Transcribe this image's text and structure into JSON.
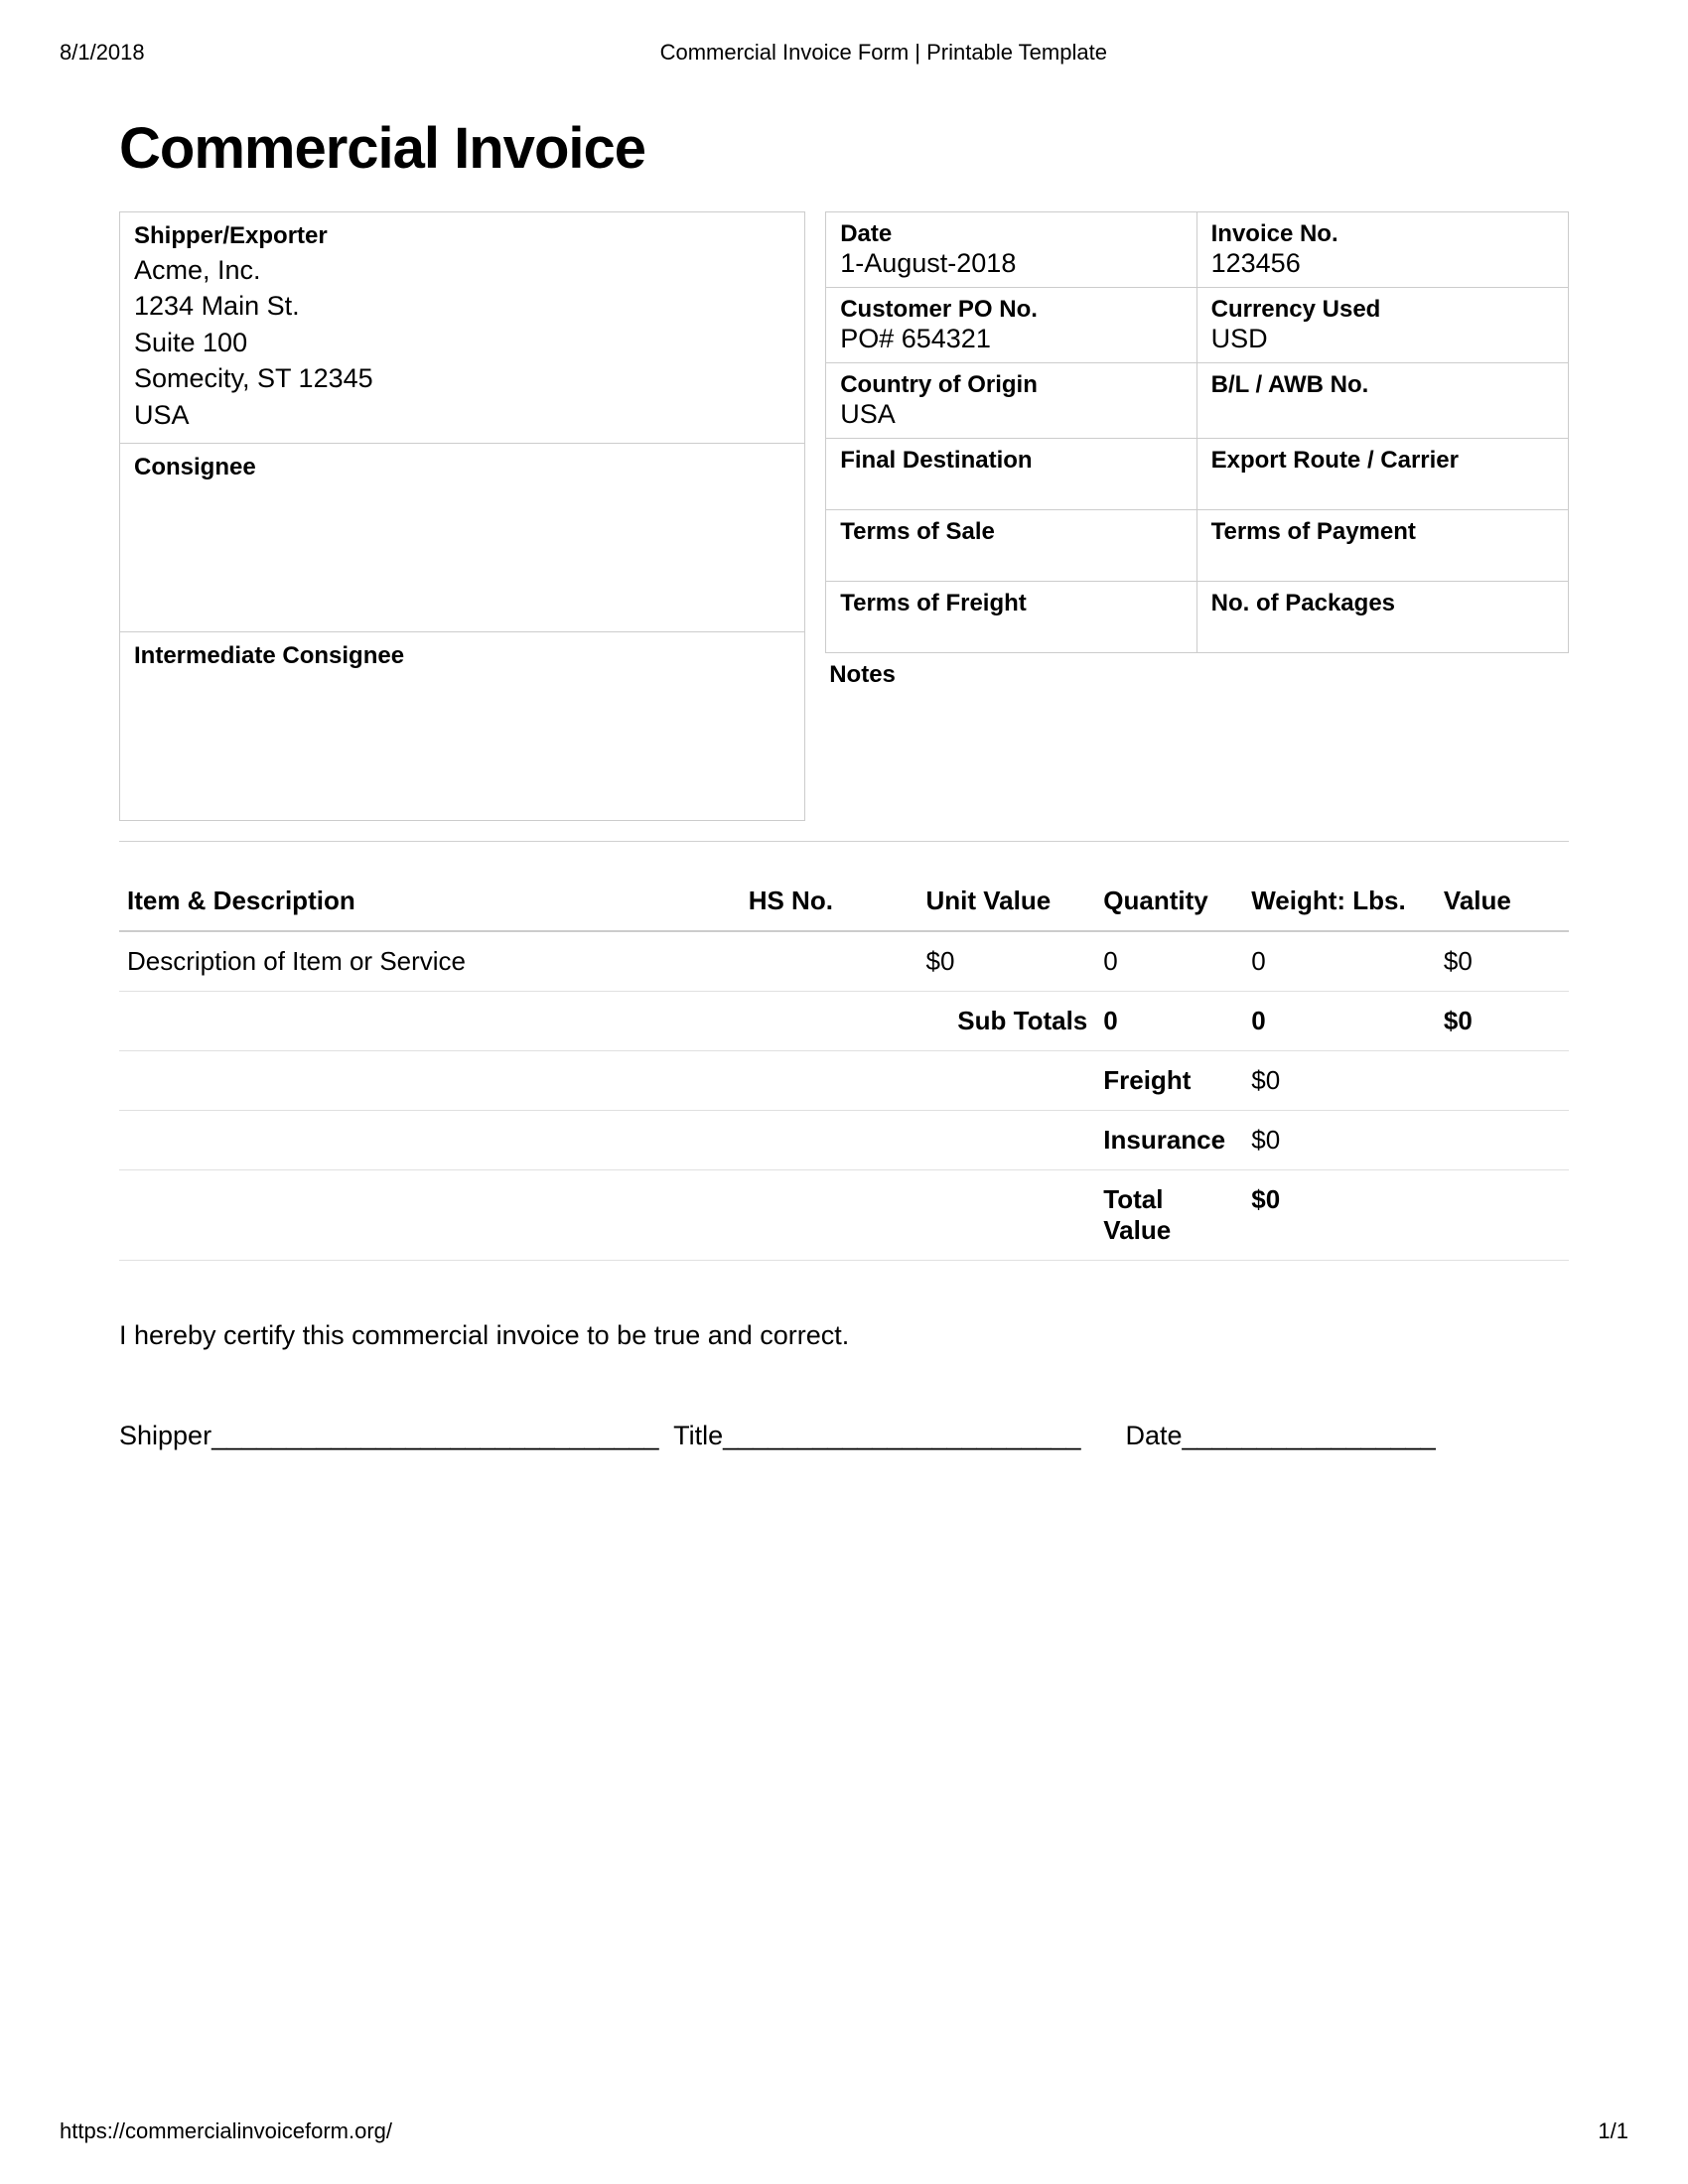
{
  "print": {
    "date": "8/1/2018",
    "title": "Commercial Invoice Form | Printable Template",
    "url": "https://commercialinvoiceform.org/",
    "page": "1/1"
  },
  "heading": "Commercial Invoice",
  "shipper": {
    "label": "Shipper/Exporter",
    "name": "Acme, Inc.",
    "street": "1234 Main St.",
    "suite": "Suite 100",
    "citystate": "Somecity, ST 12345",
    "country": "USA"
  },
  "consignee": {
    "label": "Consignee"
  },
  "intermediate": {
    "label": "Intermediate Consignee"
  },
  "fields": {
    "date": {
      "label": "Date",
      "value": "1-August-2018"
    },
    "invoice_no": {
      "label": "Invoice No.",
      "value": "123456"
    },
    "customer_po": {
      "label": "Customer PO No.",
      "value": "PO# 654321"
    },
    "currency": {
      "label": "Currency Used",
      "value": "USD"
    },
    "country_origin": {
      "label": "Country of Origin",
      "value": "USA"
    },
    "bl_awb": {
      "label": "B/L / AWB No.",
      "value": ""
    },
    "final_dest": {
      "label": "Final Destination",
      "value": ""
    },
    "export_route": {
      "label": "Export Route / Carrier",
      "value": ""
    },
    "terms_sale": {
      "label": "Terms of Sale",
      "value": ""
    },
    "terms_payment": {
      "label": "Terms of Payment",
      "value": ""
    },
    "terms_freight": {
      "label": "Terms of Freight",
      "value": ""
    },
    "no_packages": {
      "label": "No. of Packages",
      "value": ""
    }
  },
  "notes_label": "Notes",
  "table": {
    "headers": {
      "item": "Item & Description",
      "hs": "HS No.",
      "unit": "Unit Value",
      "qty": "Quantity",
      "weight": "Weight: Lbs.",
      "value": "Value"
    },
    "row": {
      "desc": "Description of Item or Service",
      "hs": "",
      "unit": "$0",
      "qty": "0",
      "weight": "0",
      "value": "$0"
    },
    "subtotals": {
      "label": "Sub Totals",
      "qty": "0",
      "weight": "0",
      "value": "$0"
    },
    "freight": {
      "label": "Freight",
      "value": "$0"
    },
    "insurance": {
      "label": "Insurance",
      "value": "$0"
    },
    "total": {
      "label": "Total Value",
      "value": "$0"
    }
  },
  "certification": "I hereby certify this commercial invoice to be true and correct.",
  "signature": {
    "shipper": "Shipper",
    "title": "Title",
    "date": "Date"
  }
}
